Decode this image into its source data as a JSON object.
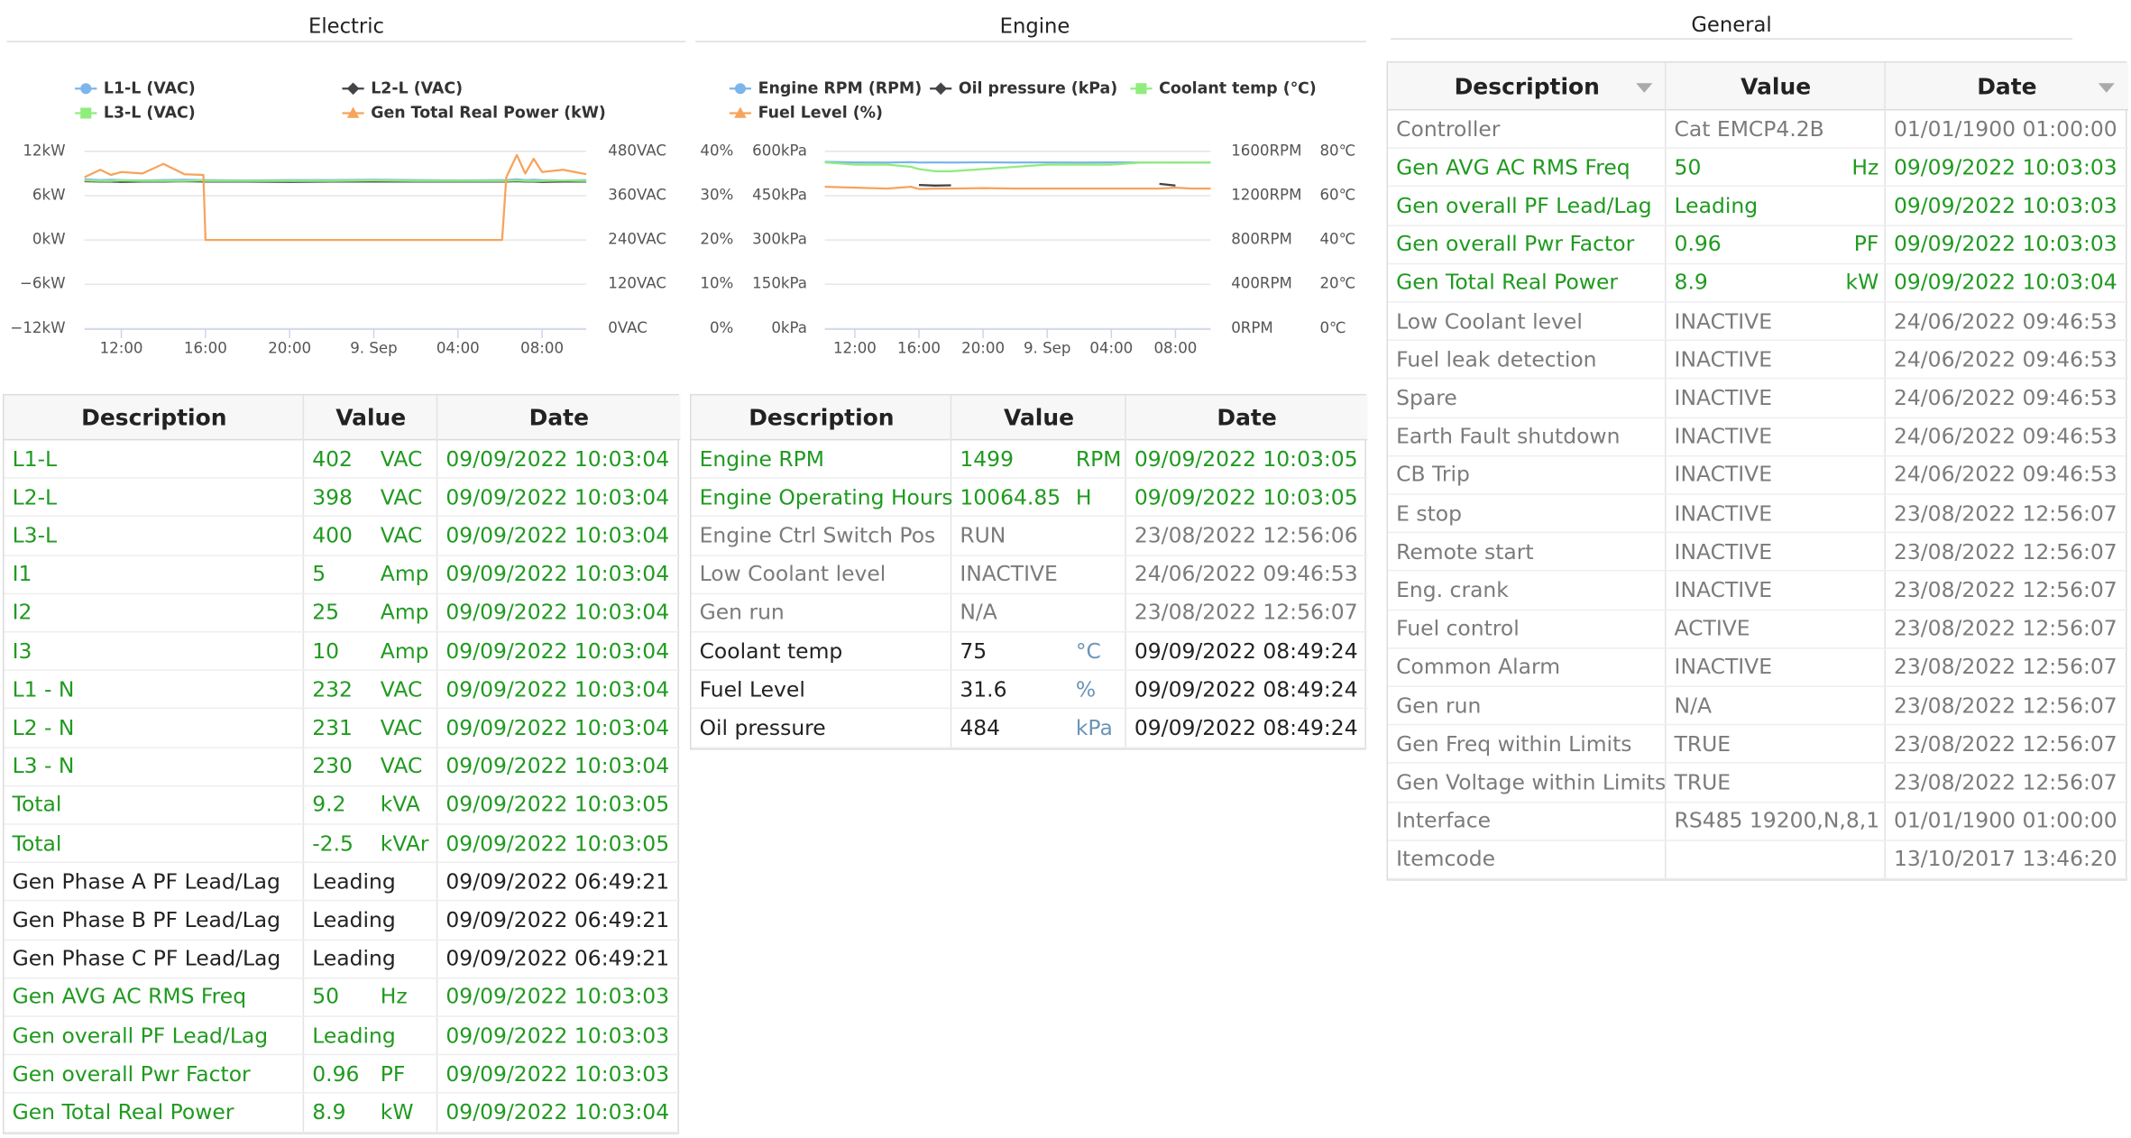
{
  "chart_data": [
    {
      "type": "line",
      "title": "Electric",
      "grid": true,
      "x": [
        10.25,
        11,
        11.5,
        12,
        13,
        14,
        15,
        15.9,
        16,
        18,
        20,
        22,
        24,
        26,
        28,
        30.1,
        30.3,
        30.8,
        31.2,
        31.6,
        32,
        33,
        34.1
      ],
      "xlim": [
        10.25,
        34.1
      ],
      "xticks": [
        {
          "value": 12,
          "label": "12:00"
        },
        {
          "value": 16,
          "label": "16:00"
        },
        {
          "value": 20,
          "label": "20:00"
        },
        {
          "value": 24,
          "label": "9. Sep"
        },
        {
          "value": 28,
          "label": "04:00"
        },
        {
          "value": 32,
          "label": "08:00"
        }
      ],
      "axes": [
        {
          "id": "kW",
          "side": "left",
          "lim": [
            -12,
            12
          ],
          "ticks": [
            {
              "value": -12,
              "label": "−12kW"
            },
            {
              "value": -6,
              "label": "−6kW"
            },
            {
              "value": 0,
              "label": "0kW"
            },
            {
              "value": 6,
              "label": "6kW"
            },
            {
              "value": 12,
              "label": "12kW"
            }
          ]
        },
        {
          "id": "VAC",
          "side": "right",
          "lim": [
            0,
            480
          ],
          "ticks": [
            {
              "value": 0,
              "label": "0VAC"
            },
            {
              "value": 120,
              "label": "120VAC"
            },
            {
              "value": 240,
              "label": "240VAC"
            },
            {
              "value": 360,
              "label": "360VAC"
            },
            {
              "value": 480,
              "label": "480VAC"
            }
          ]
        }
      ],
      "series": [
        {
          "name": "L1-L (VAC)",
          "color": "#7cb5ec",
          "marker": "circle",
          "axis": "VAC",
          "values": [
            404,
            402,
            403,
            402,
            401,
            402,
            403,
            402,
            402,
            401,
            402,
            402,
            403,
            402,
            401,
            402,
            402,
            404,
            402,
            403,
            402,
            401,
            402
          ]
        },
        {
          "name": "L2-L (VAC)",
          "color": "#434348",
          "marker": "diamond",
          "axis": "VAC",
          "values": [
            399,
            398,
            398,
            397,
            398,
            398,
            399,
            398,
            398,
            398,
            397,
            398,
            398,
            398,
            398,
            398,
            398,
            399,
            398,
            398,
            397,
            398,
            398
          ]
        },
        {
          "name": "L3-L (VAC)",
          "color": "#90ed7d",
          "marker": "square",
          "axis": "VAC",
          "values": [
            401,
            400,
            400,
            401,
            400,
            400,
            400,
            401,
            400,
            400,
            400,
            400,
            401,
            400,
            400,
            400,
            400,
            401,
            400,
            400,
            400,
            401,
            400
          ]
        },
        {
          "name": "Gen Total Real Power (kW)",
          "color": "#f7a35c",
          "marker": "triangle",
          "axis": "kW",
          "values": [
            8.5,
            9.5,
            8.8,
            9.2,
            9.0,
            10.3,
            8.9,
            8.8,
            0,
            0,
            0,
            0,
            0,
            0,
            0,
            0,
            8.5,
            11.5,
            9,
            11,
            9.2,
            9.5,
            8.9
          ]
        }
      ]
    },
    {
      "type": "line",
      "title": "Engine",
      "grid": true,
      "x": [
        10.13,
        12,
        14,
        15.5,
        16,
        17,
        18,
        20,
        22,
        24,
        26,
        28,
        30,
        31,
        32,
        33,
        34.2
      ],
      "xlim": [
        10.13,
        34.2
      ],
      "xticks": [
        {
          "value": 12,
          "label": "12:00"
        },
        {
          "value": 16,
          "label": "16:00"
        },
        {
          "value": 20,
          "label": "20:00"
        },
        {
          "value": 24,
          "label": "9. Sep"
        },
        {
          "value": 28,
          "label": "04:00"
        },
        {
          "value": 32,
          "label": "08:00"
        }
      ],
      "axes": [
        {
          "id": "kPa",
          "side": "left",
          "lim": [
            0,
            600
          ],
          "ticks": [
            {
              "value": 0,
              "label": "0kPa"
            },
            {
              "value": 150,
              "label": "150kPa"
            },
            {
              "value": 300,
              "label": "300kPa"
            },
            {
              "value": 450,
              "label": "450kPa"
            },
            {
              "value": 600,
              "label": "600kPa"
            }
          ]
        },
        {
          "id": "pct",
          "side": "left",
          "lim": [
            0,
            40
          ],
          "ticks": [
            {
              "value": 0,
              "label": "0%"
            },
            {
              "value": 10,
              "label": "10%"
            },
            {
              "value": 20,
              "label": "20%"
            },
            {
              "value": 30,
              "label": "30%"
            },
            {
              "value": 40,
              "label": "40%"
            }
          ]
        },
        {
          "id": "RPM",
          "side": "right",
          "lim": [
            0,
            1600
          ],
          "ticks": [
            {
              "value": 0,
              "label": "0RPM"
            },
            {
              "value": 400,
              "label": "400RPM"
            },
            {
              "value": 800,
              "label": "800RPM"
            },
            {
              "value": 1200,
              "label": "1200RPM"
            },
            {
              "value": 1600,
              "label": "1600RPM"
            }
          ]
        },
        {
          "id": "C",
          "side": "right",
          "lim": [
            0,
            80
          ],
          "ticks": [
            {
              "value": 0,
              "label": "0℃"
            },
            {
              "value": 20,
              "label": "20℃"
            },
            {
              "value": 40,
              "label": "40℃"
            },
            {
              "value": 60,
              "label": "60℃"
            },
            {
              "value": 80,
              "label": "80℃"
            }
          ]
        }
      ],
      "series": [
        {
          "name": "Engine RPM (RPM)",
          "color": "#7cb5ec",
          "marker": "circle",
          "axis": "RPM",
          "values": [
            1505,
            1500,
            1499,
            1502,
            1499,
            1500,
            1499,
            1501,
            1499,
            1500,
            1499,
            1500,
            1499,
            1500,
            1499,
            1500,
            1499
          ]
        },
        {
          "name": "Oil pressure (kPa)",
          "color": "#434348",
          "marker": "diamond",
          "axis": "kPa",
          "values": [
            null,
            null,
            null,
            null,
            486,
            484,
            485,
            null,
            null,
            null,
            null,
            null,
            null,
            490,
            484,
            null,
            null
          ]
        },
        {
          "name": "Coolant temp (℃)",
          "color": "#90ed7d",
          "marker": "square",
          "axis": "C",
          "values": [
            75,
            74,
            74,
            73,
            72,
            71,
            71,
            72,
            73,
            74,
            74,
            74,
            75,
            75,
            75,
            75,
            75
          ]
        },
        {
          "name": "Fuel Level (%)",
          "color": "#f7a35c",
          "marker": "triangle",
          "axis": "pct",
          "values": [
            32,
            31.8,
            31.6,
            32,
            31.5,
            31.6,
            31.6,
            31.7,
            31.6,
            31.6,
            31.6,
            31.6,
            31.6,
            31.6,
            31.8,
            31.6,
            31.6
          ]
        }
      ]
    }
  ],
  "electric_table": {
    "columns": [
      "Description",
      "Value",
      "Date"
    ],
    "rows": [
      {
        "description": "L1-L",
        "value": "402",
        "unit": "VAC",
        "date": "09/09/2022 10:03:04",
        "color": "#1f9a1f"
      },
      {
        "description": "L2-L",
        "value": "398",
        "unit": "VAC",
        "date": "09/09/2022 10:03:04",
        "color": "#1f9a1f"
      },
      {
        "description": "L3-L",
        "value": "400",
        "unit": "VAC",
        "date": "09/09/2022 10:03:04",
        "color": "#1f9a1f"
      },
      {
        "description": "I1",
        "value": "5",
        "unit": "Amp",
        "date": "09/09/2022 10:03:04",
        "color": "#1f9a1f"
      },
      {
        "description": "I2",
        "value": "25",
        "unit": "Amp",
        "date": "09/09/2022 10:03:04",
        "color": "#1f9a1f"
      },
      {
        "description": "I3",
        "value": "10",
        "unit": "Amp",
        "date": "09/09/2022 10:03:04",
        "color": "#1f9a1f"
      },
      {
        "description": "L1 - N",
        "value": "232",
        "unit": "VAC",
        "date": "09/09/2022 10:03:04",
        "color": "#1f9a1f"
      },
      {
        "description": "L2 - N",
        "value": "231",
        "unit": "VAC",
        "date": "09/09/2022 10:03:04",
        "color": "#1f9a1f"
      },
      {
        "description": "L3 - N",
        "value": "230",
        "unit": "VAC",
        "date": "09/09/2022 10:03:04",
        "color": "#1f9a1f"
      },
      {
        "description": "Total",
        "value": "9.2",
        "unit": "kVA",
        "date": "09/09/2022 10:03:05",
        "color": "#1f9a1f"
      },
      {
        "description": "Total",
        "value": "-2.5",
        "unit": "kVAr",
        "date": "09/09/2022 10:03:05",
        "color": "#1f9a1f"
      },
      {
        "description": "Gen Phase A PF Lead/Lag",
        "value": "Leading",
        "date": "09/09/2022 06:49:21",
        "color": "#222222"
      },
      {
        "description": "Gen Phase B PF Lead/Lag",
        "value": "Leading",
        "date": "09/09/2022 06:49:21",
        "color": "#222222"
      },
      {
        "description": "Gen Phase C PF Lead/Lag",
        "value": "Leading",
        "date": "09/09/2022 06:49:21",
        "color": "#222222"
      },
      {
        "description": "Gen AVG AC RMS Freq",
        "value": "50",
        "unit": "Hz",
        "date": "09/09/2022 10:03:03",
        "color": "#1f9a1f"
      },
      {
        "description": "Gen overall PF Lead/Lag",
        "value": "Leading",
        "date": "09/09/2022 10:03:03",
        "color": "#1f9a1f"
      },
      {
        "description": "Gen overall Pwr Factor",
        "value": "0.96",
        "unit": "PF",
        "date": "09/09/2022 10:03:03",
        "color": "#1f9a1f"
      },
      {
        "description": "Gen Total Real Power",
        "value": "8.9",
        "unit": "kW",
        "date": "09/09/2022 10:03:04",
        "color": "#1f9a1f"
      }
    ]
  },
  "engine_table": {
    "columns": [
      "Description",
      "Value",
      "Date"
    ],
    "rows": [
      {
        "description": "Engine RPM",
        "value": "1499",
        "unit": "RPM",
        "date": "09/09/2022 10:03:05",
        "color": "#1f9a1f"
      },
      {
        "description": "Engine Operating Hours",
        "value": "10064.85",
        "unit": "H",
        "date": "09/09/2022 10:03:05",
        "color": "#1f9a1f"
      },
      {
        "description": "Engine Ctrl Switch Pos",
        "value": "RUN",
        "date": "23/08/2022 12:56:06",
        "color": "#7b7b7b"
      },
      {
        "description": "Low Coolant level",
        "value": "INACTIVE",
        "date": "24/06/2022 09:46:53",
        "color": "#7b7b7b"
      },
      {
        "description": "Gen run",
        "value": "N/A",
        "date": "23/08/2022 12:56:07",
        "color": "#7b7b7b"
      },
      {
        "description": "Coolant temp",
        "value": "75",
        "unit": "°C",
        "date": "09/09/2022 08:49:24",
        "color": "#222222",
        "unit_color": "#6b93b8"
      },
      {
        "description": "Fuel Level",
        "value": "31.6",
        "unit": "%",
        "date": "09/09/2022 08:49:24",
        "color": "#222222",
        "unit_color": "#6b93b8"
      },
      {
        "description": "Oil pressure",
        "value": "484",
        "unit": "kPa",
        "date": "09/09/2022 08:49:24",
        "color": "#222222",
        "unit_color": "#6b93b8"
      }
    ]
  },
  "general": {
    "title": "General",
    "table": {
      "columns": [
        "Description",
        "Value",
        "Date"
      ],
      "rows": [
        {
          "description": "Controller",
          "value": "Cat EMCP4.2B",
          "date": "01/01/1900 01:00:00",
          "color": "#7b7b7b"
        },
        {
          "description": "Gen AVG AC RMS Freq",
          "value": "50",
          "unit": "Hz",
          "date": "09/09/2022 10:03:03",
          "color": "#1f9a1f"
        },
        {
          "description": "Gen overall PF Lead/Lag",
          "value": "Leading",
          "date": "09/09/2022 10:03:03",
          "color": "#1f9a1f"
        },
        {
          "description": "Gen overall Pwr Factor",
          "value": "0.96",
          "unit": "PF",
          "date": "09/09/2022 10:03:03",
          "color": "#1f9a1f"
        },
        {
          "description": "Gen Total Real Power",
          "value": "8.9",
          "unit": "kW",
          "date": "09/09/2022 10:03:04",
          "color": "#1f9a1f"
        },
        {
          "description": "Low Coolant level",
          "value": "INACTIVE",
          "date": "24/06/2022 09:46:53",
          "color": "#7b7b7b"
        },
        {
          "description": "Fuel leak detection",
          "value": "INACTIVE",
          "date": "24/06/2022 09:46:53",
          "color": "#7b7b7b"
        },
        {
          "description": "Spare",
          "value": "INACTIVE",
          "date": "24/06/2022 09:46:53",
          "color": "#7b7b7b"
        },
        {
          "description": "Earth Fault shutdown",
          "value": "INACTIVE",
          "date": "24/06/2022 09:46:53",
          "color": "#7b7b7b"
        },
        {
          "description": "CB Trip",
          "value": "INACTIVE",
          "date": "24/06/2022 09:46:53",
          "color": "#7b7b7b"
        },
        {
          "description": "E stop",
          "value": "INACTIVE",
          "date": "23/08/2022 12:56:07",
          "color": "#7b7b7b"
        },
        {
          "description": "Remote start",
          "value": "INACTIVE",
          "date": "23/08/2022 12:56:07",
          "color": "#7b7b7b"
        },
        {
          "description": "Eng. crank",
          "value": "INACTIVE",
          "date": "23/08/2022 12:56:07",
          "color": "#7b7b7b"
        },
        {
          "description": "Fuel control",
          "value": "ACTIVE",
          "date": "23/08/2022 12:56:07",
          "color": "#7b7b7b"
        },
        {
          "description": "Common Alarm",
          "value": "INACTIVE",
          "date": "23/08/2022 12:56:07",
          "color": "#7b7b7b"
        },
        {
          "description": "Gen run",
          "value": "N/A",
          "date": "23/08/2022 12:56:07",
          "color": "#7b7b7b"
        },
        {
          "description": "Gen Freq within Limits",
          "value": "TRUE",
          "date": "23/08/2022 12:56:07",
          "color": "#7b7b7b"
        },
        {
          "description": "Gen Voltage within Limits",
          "value": "TRUE",
          "date": "23/08/2022 12:56:07",
          "color": "#7b7b7b"
        },
        {
          "description": "Interface",
          "value": "RS485 19200,N,8,1",
          "date": "01/01/1900 01:00:00",
          "color": "#7b7b7b"
        },
        {
          "description": "Itemcode",
          "date": "13/10/2017 13:46:20",
          "color": "#7b7b7b"
        }
      ]
    }
  }
}
